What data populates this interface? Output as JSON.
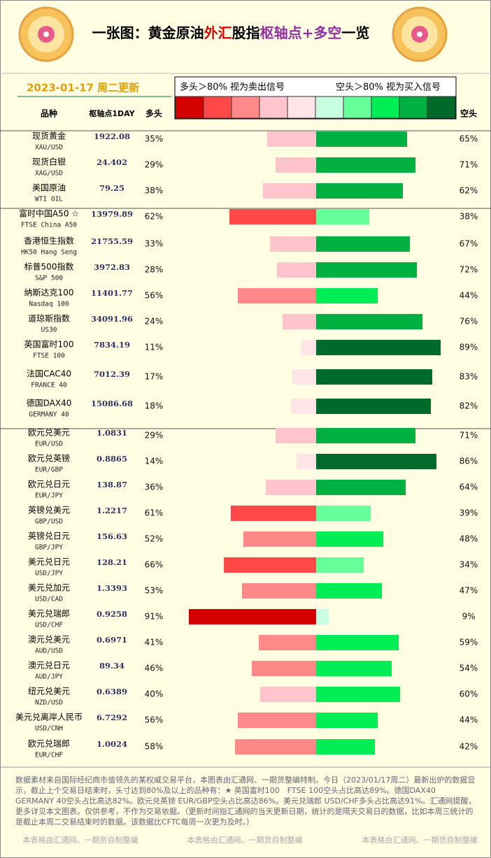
{
  "header": {
    "title_parts": [
      "一张图：黄金原油",
      "外汇",
      "股指",
      "枢轴点+多空",
      "一览"
    ],
    "date": "2023-01-17 周二更新"
  },
  "legend": {
    "long_note": "多头＞80% 视为卖出信号",
    "short_note": "空头＞80% 视为买入信号",
    "scale_colors": [
      "#d40000",
      "#ff4848",
      "#ff8888",
      "#ffc4cc",
      "#ffe4e8",
      "#c8ffe0",
      "#66ff99",
      "#00ee55",
      "#00b040",
      "#006a2a"
    ]
  },
  "table": {
    "columns": [
      "品种",
      "枢轴点1DAY",
      "多头",
      "空头"
    ],
    "rows": [
      {
        "name": "现货黄金",
        "code": "XAU/USD",
        "pivot": "1922.08",
        "long": 35,
        "long_label": "35%",
        "short": 65,
        "short_label": "65%"
      },
      {
        "name": "现货白银",
        "code": "XAG/USD",
        "pivot": "24.402",
        "long": 29,
        "long_label": "29%",
        "short": 71,
        "short_label": "71%"
      },
      {
        "name": "美国原油",
        "code": "WTI OIL",
        "pivot": "79.25",
        "long": 38,
        "long_label": "38%",
        "short": 62,
        "short_label": "62%"
      },
      {
        "name": "富时中国A50 ☆",
        "code": "FTSE China A50",
        "pivot": "13979.89",
        "long": 62,
        "long_label": "62%",
        "short": 38,
        "short_label": "38%"
      },
      {
        "name": "香港恒生指数",
        "code": "HK50 Hang Seng",
        "pivot": "21755.59",
        "long": 33,
        "long_label": "33%",
        "short": 67,
        "short_label": "67%"
      },
      {
        "name": "标普500指数",
        "code": "S&P 500",
        "pivot": "3972.83",
        "long": 28,
        "long_label": "28%",
        "short": 72,
        "short_label": "72%"
      },
      {
        "name": "纳斯达克100",
        "code": "Nasdaq 100",
        "pivot": "11401.77",
        "long": 56,
        "long_label": "56%",
        "short": 44,
        "short_label": "44%"
      },
      {
        "name": "道琼斯指数",
        "code": "US30",
        "pivot": "34091.96",
        "long": 24,
        "long_label": "24%",
        "short": 76,
        "short_label": "76%"
      },
      {
        "name": "英国富时100",
        "code": "FTSE 100",
        "pivot": "7834.19",
        "long": 11,
        "long_label": "11%",
        "short": 89,
        "short_label": "89%"
      },
      {
        "name": "法国CAC40",
        "code": "FRANCE 40",
        "pivot": "7012.39",
        "long": 17,
        "long_label": "17%",
        "short": 83,
        "short_label": "83%"
      },
      {
        "name": "德国DAX40",
        "code": "GERMANY 40",
        "pivot": "15086.68",
        "long": 18,
        "long_label": "18%",
        "short": 82,
        "short_label": "82%"
      },
      {
        "name": "欧元兑美元",
        "code": "EUR/USD",
        "pivot": "1.0831",
        "long": 29,
        "long_label": "29%",
        "short": 71,
        "short_label": "71%"
      },
      {
        "name": "欧元兑英镑",
        "code": "EUR/GBP",
        "pivot": "0.8865",
        "long": 14,
        "long_label": "14%",
        "short": 86,
        "short_label": "86%"
      },
      {
        "name": "欧元兑日元",
        "code": "EUR/JPY",
        "pivot": "138.87",
        "long": 36,
        "long_label": "36%",
        "short": 64,
        "short_label": "64%"
      },
      {
        "name": "英镑兑美元",
        "code": "GBP/USD",
        "pivot": "1.2217",
        "long": 61,
        "long_label": "61%",
        "short": 39,
        "short_label": "39%"
      },
      {
        "name": "英镑兑日元",
        "code": "GBP/JPY",
        "pivot": "156.63",
        "long": 52,
        "long_label": "52%",
        "short": 48,
        "short_label": "48%"
      },
      {
        "name": "美元兑日元",
        "code": "USD/JPY",
        "pivot": "128.21",
        "long": 66,
        "long_label": "66%",
        "short": 34,
        "short_label": "34%"
      },
      {
        "name": "美元兑加元",
        "code": "USD/CAD",
        "pivot": "1.3393",
        "long": 53,
        "long_label": "53%",
        "short": 47,
        "short_label": "47%"
      },
      {
        "name": "美元兑瑞郎",
        "code": "USD/CHF",
        "pivot": "0.9258",
        "long": 91,
        "long_label": "91%",
        "short": 9,
        "short_label": "9%"
      },
      {
        "name": "澳元兑美元",
        "code": "AUD/USD",
        "pivot": "0.6971",
        "long": 41,
        "long_label": "41%",
        "short": 59,
        "short_label": "59%"
      },
      {
        "name": "澳元兑日元",
        "code": "AUD/JPY",
        "pivot": "89.34",
        "long": 46,
        "long_label": "46%",
        "short": 54,
        "short_label": "54%"
      },
      {
        "name": "纽元兑美元",
        "code": "NZD/USD",
        "pivot": "0.6389",
        "long": 40,
        "long_label": "40%",
        "short": 60,
        "short_label": "60%"
      },
      {
        "name": "美元兑离岸人民币",
        "code": "USD/CNH",
        "pivot": "6.7292",
        "long": 56,
        "long_label": "56%",
        "short": 44,
        "short_label": "44%"
      },
      {
        "name": "欧元兑瑞郎",
        "code": "EUR/CHF",
        "pivot": "1.0024",
        "long": 58,
        "long_label": "58%",
        "short": 42,
        "short_label": "42%"
      }
    ]
  },
  "footer": {
    "note": "数据素材来自国际经纪商市值领先的某权威交易平台，本图表由汇通网、一期货整编特制。今日（2023/01/17周二）最新出炉的数据显示，截止上个交易日结束时，头寸达到80%及以上的品种有：★ 英国富时100　FTSE 100空头占比高达89%。德国DAX40　GERMANY 40空头占比高达82%。欧元兑英镑 EUR/GBP空头占比高达86%。美元兑瑞郎 USD/CHF多头占比高达91%。汇通网提醒，更多详见本文图表。仅供参考，不作为交易依据。（更新时间指汇通网的当天更新日期，统计的是隔天交易日的数据，比如本周三统计的是截止本周二交易结束时的数据。该数据比CFTC每周一次更为及时。）",
    "watermark": "本表格由汇通网、一期货自制整编"
  }
}
